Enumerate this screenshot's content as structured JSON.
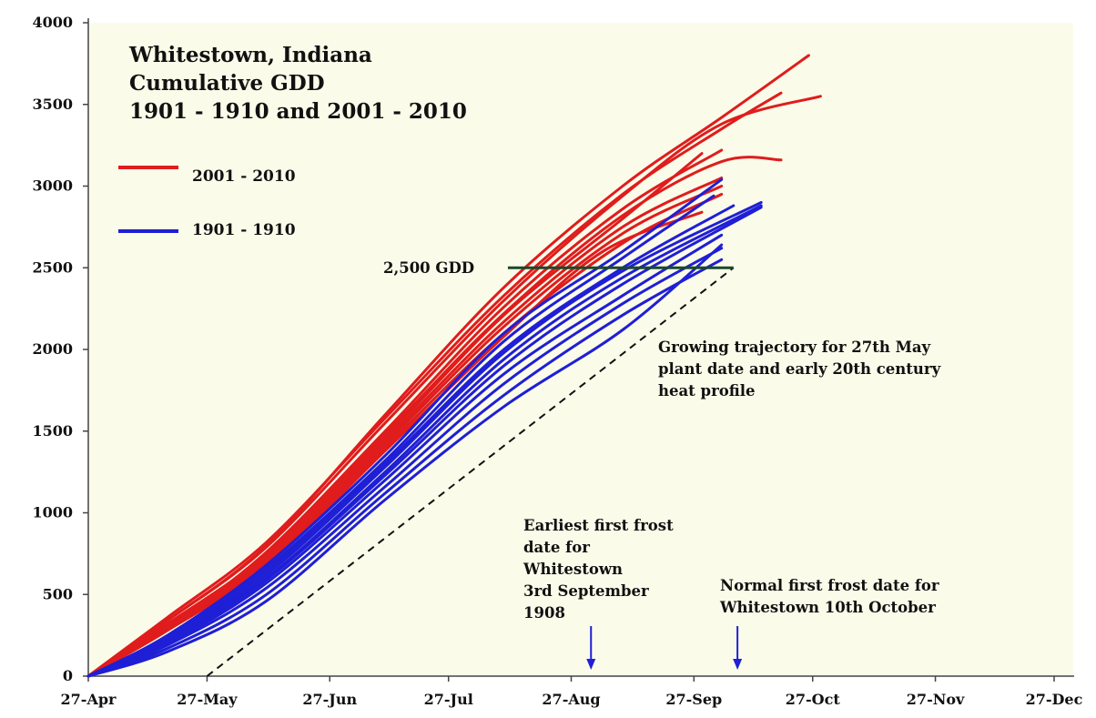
{
  "chart_data": {
    "type": "line",
    "title_lines": [
      "Whitestown, Indiana",
      "Cumulative GDD",
      "1901 - 1910 and 2001 - 2010"
    ],
    "xlabel": "",
    "ylabel": "",
    "x_ticks": [
      "27-Apr",
      "27-May",
      "27-Jun",
      "27-Jul",
      "27-Aug",
      "27-Sep",
      "27-Oct",
      "27-Nov",
      "27-Dec"
    ],
    "x_tick_days": [
      0,
      30,
      61,
      91,
      122,
      153,
      183,
      214,
      244
    ],
    "x_unit": "days after 27-Apr",
    "y_ticks": [
      "0",
      "500",
      "1000",
      "1500",
      "2000",
      "2500",
      "3000",
      "3500",
      "4000"
    ],
    "ylim": [
      0,
      4000
    ],
    "xlim": [
      0,
      244
    ],
    "grid": false,
    "legend_position": "top-left",
    "colors": {
      "red": "#e01c1c",
      "blue": "#1f1fd6",
      "plot_bg": "#fbfbea",
      "threshold": "#1a4a2a"
    },
    "series_groups": [
      {
        "name": "2001 - 2010",
        "color": "#e01c1c",
        "series": [
          {
            "points": [
              [
                0,
                0
              ],
              [
                20,
                340
              ],
              [
                45,
                800
              ],
              [
                75,
                1600
              ],
              [
                105,
                2380
              ],
              [
                135,
                3000
              ],
              [
                160,
                3420
              ],
              [
                182,
                3800
              ]
            ]
          },
          {
            "points": [
              [
                0,
                0
              ],
              [
                20,
                360
              ],
              [
                45,
                820
              ],
              [
                75,
                1580
              ],
              [
                105,
                2330
              ],
              [
                135,
                2950
              ],
              [
                160,
                3350
              ],
              [
                175,
                3570
              ]
            ]
          },
          {
            "points": [
              [
                0,
                0
              ],
              [
                20,
                340
              ],
              [
                45,
                790
              ],
              [
                75,
                1550
              ],
              [
                105,
                2300
              ],
              [
                135,
                2940
              ],
              [
                160,
                3380
              ],
              [
                185,
                3550
              ]
            ]
          },
          {
            "points": [
              [
                0,
                0
              ],
              [
                20,
                300
              ],
              [
                45,
                760
              ],
              [
                75,
                1500
              ],
              [
                105,
                2260
              ],
              [
                135,
                2860
              ],
              [
                160,
                3220
              ]
            ]
          },
          {
            "points": [
              [
                0,
                0
              ],
              [
                20,
                320
              ],
              [
                45,
                750
              ],
              [
                75,
                1480
              ],
              [
                105,
                2220
              ],
              [
                135,
                2820
              ],
              [
                160,
                3150
              ],
              [
                175,
                3160
              ]
            ]
          },
          {
            "points": [
              [
                0,
                0
              ],
              [
                20,
                310
              ],
              [
                45,
                740
              ],
              [
                75,
                1460
              ],
              [
                105,
                2210
              ],
              [
                135,
                2800
              ],
              [
                155,
                3200
              ]
            ]
          },
          {
            "points": [
              [
                0,
                0
              ],
              [
                20,
                300
              ],
              [
                45,
                720
              ],
              [
                75,
                1440
              ],
              [
                105,
                2170
              ],
              [
                135,
                2750
              ],
              [
                160,
                3050
              ]
            ]
          },
          {
            "points": [
              [
                0,
                0
              ],
              [
                20,
                290
              ],
              [
                45,
                700
              ],
              [
                75,
                1420
              ],
              [
                105,
                2140
              ],
              [
                135,
                2710
              ],
              [
                160,
                3000
              ]
            ]
          },
          {
            "points": [
              [
                0,
                0
              ],
              [
                20,
                280
              ],
              [
                45,
                680
              ],
              [
                75,
                1400
              ],
              [
                105,
                2100
              ],
              [
                135,
                2650
              ],
              [
                160,
                2950
              ]
            ]
          },
          {
            "points": [
              [
                0,
                0
              ],
              [
                20,
                300
              ],
              [
                45,
                680
              ],
              [
                75,
                1380
              ],
              [
                105,
                2080
              ],
              [
                130,
                2600
              ],
              [
                155,
                2840
              ]
            ]
          }
        ]
      },
      {
        "name": "1901 - 1910",
        "color": "#1f1fd6",
        "series": [
          {
            "points": [
              [
                0,
                0
              ],
              [
                20,
                250
              ],
              [
                45,
                680
              ],
              [
                75,
                1350
              ],
              [
                105,
                2100
              ],
              [
                135,
                2600
              ],
              [
                160,
                3040
              ]
            ]
          },
          {
            "points": [
              [
                0,
                0
              ],
              [
                20,
                240
              ],
              [
                45,
                660
              ],
              [
                75,
                1320
              ],
              [
                105,
                2050
              ],
              [
                135,
                2560
              ],
              [
                158,
                2940
              ]
            ]
          },
          {
            "points": [
              [
                0,
                0
              ],
              [
                20,
                230
              ],
              [
                45,
                640
              ],
              [
                75,
                1300
              ],
              [
                105,
                2000
              ],
              [
                135,
                2500
              ],
              [
                163,
                2880
              ]
            ]
          },
          {
            "points": [
              [
                0,
                0
              ],
              [
                20,
                220
              ],
              [
                45,
                620
              ],
              [
                75,
                1280
              ],
              [
                105,
                1980
              ],
              [
                135,
                2480
              ],
              [
                170,
                2900
              ]
            ]
          },
          {
            "points": [
              [
                0,
                0
              ],
              [
                20,
                220
              ],
              [
                45,
                600
              ],
              [
                75,
                1250
              ],
              [
                105,
                1940
              ],
              [
                135,
                2440
              ],
              [
                170,
                2880
              ]
            ]
          },
          {
            "points": [
              [
                0,
                0
              ],
              [
                20,
                210
              ],
              [
                45,
                590
              ],
              [
                75,
                1230
              ],
              [
                105,
                1900
              ],
              [
                135,
                2400
              ],
              [
                170,
                2870
              ]
            ]
          },
          {
            "points": [
              [
                0,
                0
              ],
              [
                20,
                200
              ],
              [
                45,
                570
              ],
              [
                75,
                1200
              ],
              [
                105,
                1850
              ],
              [
                135,
                2330
              ],
              [
                160,
                2700
              ]
            ]
          },
          {
            "points": [
              [
                0,
                0
              ],
              [
                20,
                190
              ],
              [
                45,
                540
              ],
              [
                75,
                1160
              ],
              [
                105,
                1790
              ],
              [
                135,
                2280
              ],
              [
                160,
                2620
              ]
            ]
          },
          {
            "points": [
              [
                0,
                0
              ],
              [
                20,
                170
              ],
              [
                45,
                500
              ],
              [
                75,
                1120
              ],
              [
                105,
                1720
              ],
              [
                135,
                2210
              ],
              [
                160,
                2550
              ]
            ]
          },
          {
            "points": [
              [
                0,
                0
              ],
              [
                20,
                150
              ],
              [
                45,
                460
              ],
              [
                75,
                1080
              ],
              [
                105,
                1650
              ],
              [
                135,
                2120
              ],
              [
                160,
                2640
              ]
            ]
          }
        ]
      }
    ],
    "legend": [
      {
        "label": "2001 - 2010",
        "color": "#e01c1c"
      },
      {
        "label": "1901 - 1910",
        "color": "#1f1fd6"
      }
    ],
    "threshold": {
      "label": "2,500 GDD",
      "y": 2500,
      "x_start": 106,
      "x_end": 163
    },
    "trajectory": {
      "start": [
        30,
        0
      ],
      "end": [
        163,
        2500
      ],
      "style": "dashed"
    },
    "annotations": [
      {
        "key": "trajectory_note",
        "lines": [
          "Growing trajectory for 27th May",
          "plant date and early 20th century",
          "heat profile"
        ]
      },
      {
        "key": "earliest_frost",
        "lines": [
          "Earliest first frost",
          "date for",
          "Whitestown",
          "3rd September",
          "1908"
        ],
        "arrow_x": 127
      },
      {
        "key": "normal_frost",
        "lines": [
          "Normal first frost date for",
          "Whitestown 10th October"
        ],
        "arrow_x": 164
      }
    ]
  }
}
